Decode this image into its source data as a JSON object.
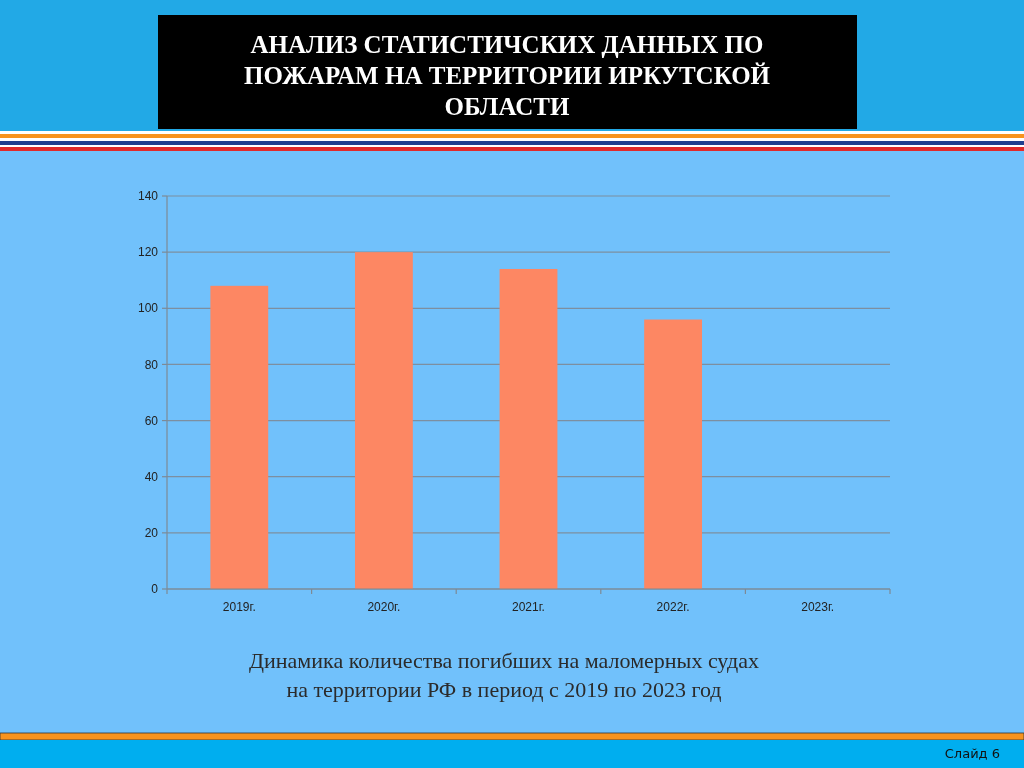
{
  "chart_data": {
    "type": "bar",
    "title": "АНАЛИЗ СТАТИСТИЧСКИХ ДАННЫХ ПО\nПОЖАРАМ НА ТЕРРИТОРИИ ИРКУТСКОЙ\nОБЛАСТИ",
    "categories": [
      "2019г.",
      "2020г.",
      "2021г.",
      "2022г.",
      "2023г."
    ],
    "values": [
      108,
      120,
      114,
      96,
      null
    ],
    "color": "#fd8763",
    "ylim": [
      0,
      140
    ],
    "yticks": [
      0,
      20,
      40,
      60,
      80,
      100,
      120,
      140
    ],
    "grid": "y",
    "annotations": [
      "Динамика количества погибших на маломерных судах\nна территории РФ в период с 2019 по 2023 год",
      "Слайд 6"
    ]
  }
}
